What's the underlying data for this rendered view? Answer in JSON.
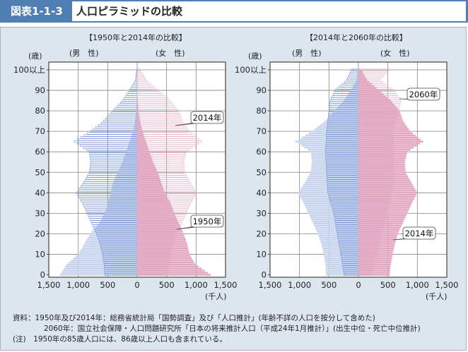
{
  "header": {
    "label": "図表1-1-3",
    "title": "人口ピラミッドの比較"
  },
  "chart_data": [
    {
      "type": "bar",
      "subtype": "population-pyramid",
      "title": "【1950年と2014年の比較】",
      "ylabel": "(歳)",
      "xlabel": "(千人)",
      "male_label": "(男　性)",
      "female_label": "(女　性)",
      "age_knots": [
        0,
        5,
        10,
        15,
        20,
        25,
        30,
        35,
        40,
        45,
        50,
        55,
        60,
        65,
        70,
        75,
        80,
        85,
        90,
        95,
        100
      ],
      "age_tick_labels": [
        "0",
        "10",
        "20",
        "30",
        "40",
        "50",
        "60",
        "70",
        "80",
        "90",
        "100以上"
      ],
      "x_tick_labels": [
        "1,500",
        "1,000",
        "500",
        "0",
        "500",
        "1,000",
        "1,500"
      ],
      "xlim": [
        -1500,
        1500
      ],
      "ylim": [
        0,
        100
      ],
      "series": [
        {
          "name": "1950年",
          "style": "filled",
          "male": [
            1310,
            1200,
            1000,
            900,
            800,
            650,
            550,
            490,
            450,
            410,
            330,
            250,
            190,
            130,
            70,
            40,
            16,
            8,
            0,
            0,
            0
          ],
          "female": [
            1250,
            990,
            890,
            850,
            790,
            710,
            630,
            570,
            470,
            410,
            350,
            270,
            210,
            150,
            90,
            50,
            24,
            12,
            0,
            0,
            0
          ]
        },
        {
          "name": "2014年",
          "style": "outline",
          "male": [
            550,
            560,
            590,
            630,
            690,
            770,
            850,
            930,
            1030,
            910,
            810,
            790,
            810,
            1070,
            790,
            570,
            410,
            250,
            130,
            30,
            10
          ],
          "female": [
            530,
            550,
            580,
            620,
            670,
            750,
            830,
            910,
            1000,
            900,
            800,
            790,
            830,
            1100,
            880,
            760,
            700,
            550,
            350,
            150,
            50
          ]
        }
      ],
      "annotations": [
        "2014年",
        "1950年"
      ]
    },
    {
      "type": "bar",
      "subtype": "population-pyramid",
      "title": "【2014年と2060年の比較】",
      "ylabel": "(歳)",
      "xlabel": "(千人)",
      "male_label": "(男　性)",
      "female_label": "(女　性)",
      "age_knots": [
        0,
        5,
        10,
        15,
        20,
        25,
        30,
        35,
        40,
        45,
        50,
        55,
        60,
        65,
        70,
        75,
        80,
        85,
        90,
        95,
        100
      ],
      "age_tick_labels": [
        "0",
        "10",
        "20",
        "30",
        "40",
        "50",
        "60",
        "70",
        "80",
        "90",
        "100以上"
      ],
      "x_tick_labels": [
        "1,500",
        "1,000",
        "500",
        "0",
        "500",
        "1,000",
        "1,500"
      ],
      "xlim": [
        -1500,
        1500
      ],
      "ylim": [
        0,
        100
      ],
      "series": [
        {
          "name": "2014年",
          "style": "filled",
          "male": [
            550,
            560,
            590,
            630,
            690,
            770,
            850,
            930,
            1030,
            910,
            810,
            790,
            810,
            1070,
            790,
            570,
            410,
            250,
            130,
            30,
            10
          ],
          "female": [
            530,
            550,
            580,
            620,
            670,
            750,
            830,
            910,
            1000,
            900,
            800,
            790,
            830,
            1100,
            880,
            760,
            700,
            550,
            350,
            150,
            50
          ]
        },
        {
          "name": "2060年",
          "style": "outline",
          "male": [
            245,
            270,
            300,
            330,
            360,
            390,
            420,
            470,
            520,
            530,
            540,
            550,
            560,
            550,
            540,
            520,
            500,
            480,
            400,
            200,
            120
          ],
          "female": [
            240,
            280,
            320,
            360,
            400,
            450,
            500,
            540,
            580,
            600,
            620,
            610,
            600,
            600,
            600,
            640,
            680,
            720,
            600,
            360,
            520
          ]
        }
      ],
      "annotations": [
        "2060年",
        "2014年"
      ]
    }
  ],
  "notes": [
    "資料：1950年及び2014年：総務省統計局「国勢調査」及び「人口推計」(年齢不詳の人口を按分して含めた)",
    "2060年：国立社会保障・人口問題研究所「日本の将来推計人口（平成24年1月推計）」(出生中位・死亡中位推計)",
    "(注)　1950年の85歳人口には、86歳以上人口も含まれている。"
  ],
  "colors": {
    "male_fill": "#c6d4ee",
    "male_stroke": "#7d98d6",
    "female_fill": "#e2a6c1",
    "female_stroke": "#e6b5ca",
    "grid": "#6e675e"
  }
}
